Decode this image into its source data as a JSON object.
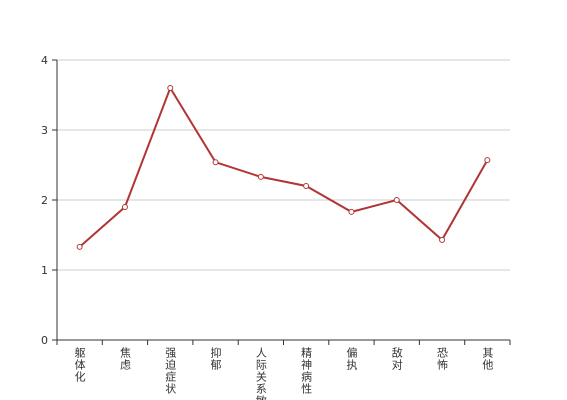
{
  "chart_data": {
    "type": "line",
    "categories": [
      "躯体化",
      "焦虑",
      "强迫症状",
      "抑郁",
      "人际关系敏感",
      "精神病性",
      "偏执",
      "敌对",
      "恐怖",
      "其他"
    ],
    "values": [
      1.33,
      1.9,
      3.6,
      2.54,
      2.33,
      2.2,
      1.83,
      2.0,
      1.43,
      2.57
    ],
    "color": "#b23535",
    "ylim": [
      0,
      4
    ],
    "yticks": [
      0,
      1,
      2,
      3,
      4
    ],
    "grid": true
  }
}
